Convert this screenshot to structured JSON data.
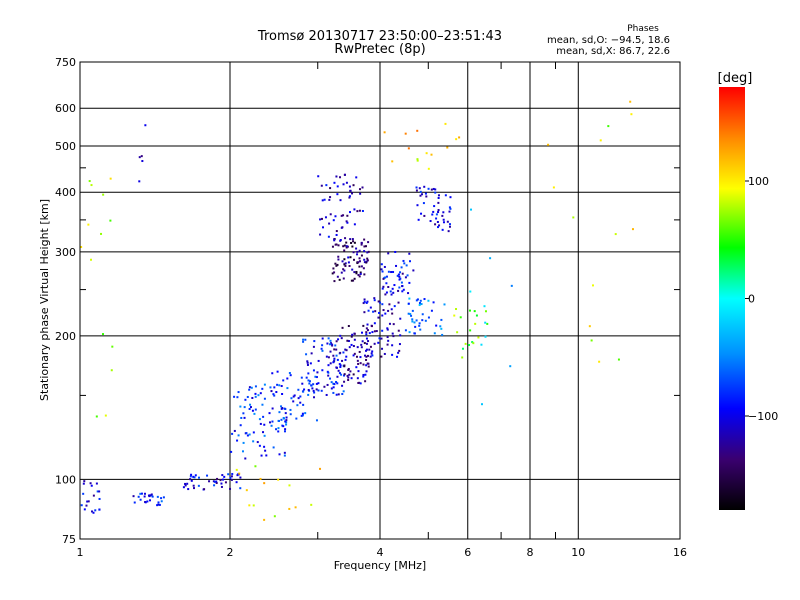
{
  "chart_data": {
    "type": "scatter",
    "title_line1": "Tromsø 20130717 23:50:00–23:51:43",
    "title_line2": "RwPretec (8p)",
    "stats": {
      "header": "Phases",
      "line1": "mean, sd,O: −94.5, 18.6",
      "line2": "mean, sd,X:  86.7, 22.6"
    },
    "xlabel": "Frequency [MHz]",
    "ylabel": "Stationary phase Virtual Height [km]",
    "x_scale": "log",
    "y_scale": "log",
    "xlim": [
      1,
      16
    ],
    "ylim": [
      75,
      750
    ],
    "x_ticks": [
      1,
      2,
      4,
      6,
      8,
      10,
      16
    ],
    "x_ticklabels": [
      "1",
      "2",
      "4",
      "6",
      "8",
      "10",
      "16"
    ],
    "x_minor_ticks": [
      3,
      5,
      7,
      9
    ],
    "y_ticks": [
      75,
      100,
      200,
      300,
      400,
      500,
      600,
      750
    ],
    "y_ticklabels": [
      "75",
      "100",
      "200",
      "300",
      "400",
      "500",
      "600",
      "750"
    ],
    "y_minor_ticks": [
      150,
      250,
      350,
      450
    ],
    "grid": true,
    "colorbar": {
      "label": "[deg]",
      "range": [
        -180,
        180
      ],
      "ticks": [
        100,
        0,
        -100
      ],
      "ticklabels": [
        "100",
        "0",
        "−100"
      ]
    },
    "clusters": [
      {
        "f": [
          1.0,
          1.1
        ],
        "h": [
          85,
          100
        ],
        "phase": -95,
        "n": 20
      },
      {
        "f": [
          1.28,
          1.48
        ],
        "h": [
          88,
          94
        ],
        "phase": -85,
        "n": 26
      },
      {
        "f": [
          1.6,
          2.1
        ],
        "h": [
          95,
          103
        ],
        "phase": -100,
        "n": 45
      },
      {
        "f": [
          2.0,
          2.6
        ],
        "h": [
          110,
          160
        ],
        "phase": -80,
        "n": 80
      },
      {
        "f": [
          2.4,
          3.0
        ],
        "h": [
          130,
          170
        ],
        "phase": -85,
        "n": 60
      },
      {
        "f": [
          2.8,
          3.4
        ],
        "h": [
          150,
          200
        ],
        "phase": -90,
        "n": 70
      },
      {
        "f": [
          3.2,
          3.8
        ],
        "h": [
          155,
          210
        ],
        "phase": -120,
        "n": 90
      },
      {
        "f": [
          3.2,
          3.8
        ],
        "h": [
          260,
          320
        ],
        "phase": -135,
        "n": 90
      },
      {
        "f": [
          3.0,
          3.7
        ],
        "h": [
          320,
          440
        ],
        "phase": -115,
        "n": 55
      },
      {
        "f": [
          3.7,
          4.4
        ],
        "h": [
          180,
          240
        ],
        "phase": -110,
        "n": 70
      },
      {
        "f": [
          4.0,
          4.7
        ],
        "h": [
          240,
          300
        ],
        "phase": -95,
        "n": 50
      },
      {
        "f": [
          4.5,
          5.4
        ],
        "h": [
          200,
          240
        ],
        "phase": -60,
        "n": 40
      },
      {
        "f": [
          4.7,
          5.3
        ],
        "h": [
          340,
          420
        ],
        "phase": -100,
        "n": 30
      },
      {
        "f": [
          5.2,
          5.6
        ],
        "h": [
          330,
          400
        ],
        "phase": -105,
        "n": 18
      },
      {
        "f": [
          5.6,
          6.6
        ],
        "h": [
          180,
          230
        ],
        "phase": 60,
        "n": 18
      },
      {
        "f": [
          1.0,
          1.2
        ],
        "h": [
          120,
          600
        ],
        "phase": 80,
        "n": 14
      },
      {
        "f": [
          1.3,
          1.4
        ],
        "h": [
          400,
          650
        ],
        "phase": -130,
        "n": 5
      },
      {
        "f": [
          2.0,
          3.2
        ],
        "h": [
          78,
          110
        ],
        "phase": 100,
        "n": 16
      },
      {
        "f": [
          4.0,
          6.0
        ],
        "h": [
          420,
          560
        ],
        "phase": 110,
        "n": 14
      },
      {
        "f": [
          8.5,
          13.0
        ],
        "h": [
          160,
          620
        ],
        "phase": 90,
        "n": 14
      },
      {
        "f": [
          6.0,
          7.5
        ],
        "h": [
          140,
          450
        ],
        "phase": -40,
        "n": 10
      }
    ]
  }
}
